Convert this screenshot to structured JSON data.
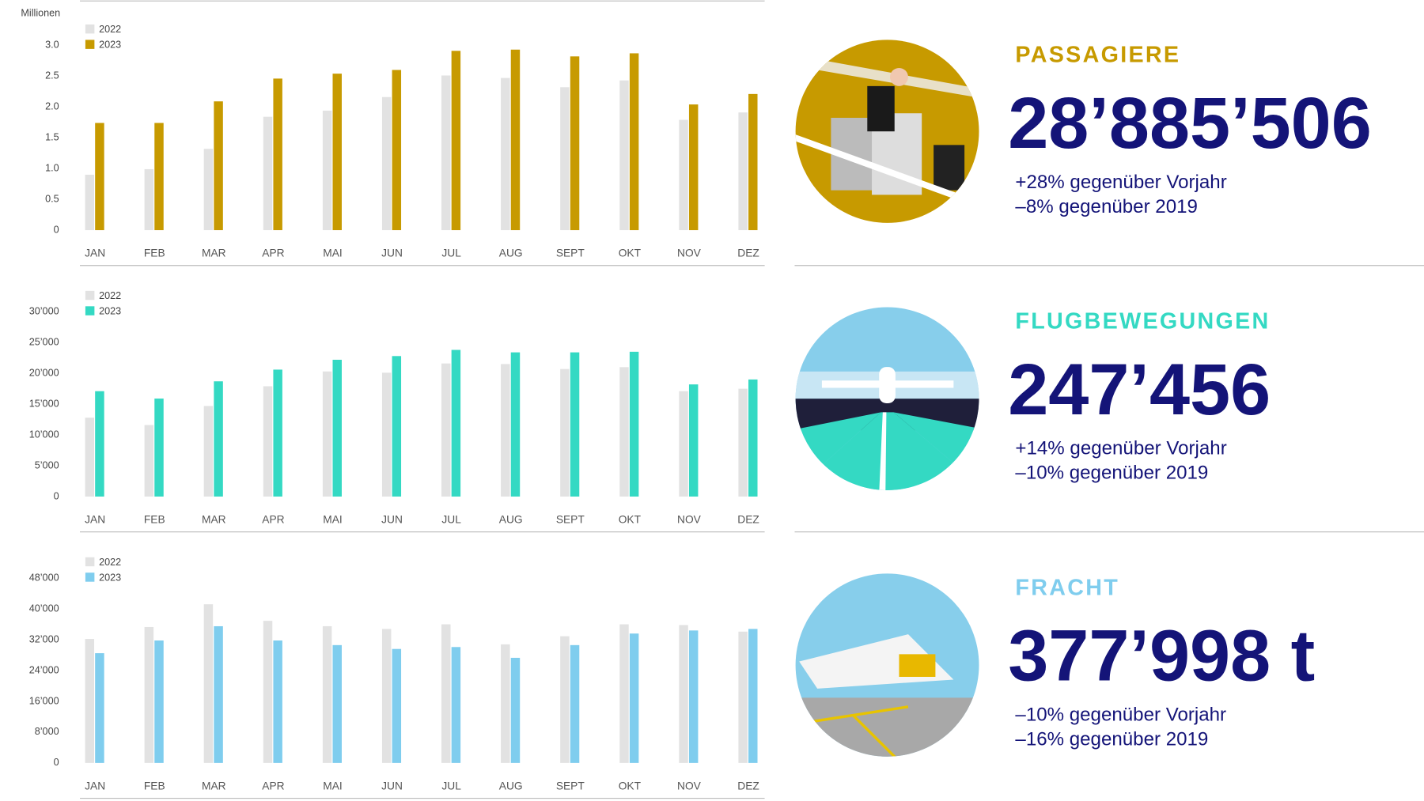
{
  "chart_data": [
    {
      "type": "bar",
      "y_label": "Millionen",
      "categories": [
        "JAN",
        "FEB",
        "MAR",
        "APR",
        "MAI",
        "JUN",
        "JUL",
        "AUG",
        "SEPT",
        "OKT",
        "NOV",
        "DEZ"
      ],
      "series": [
        {
          "name": "2022",
          "color": "#e2e2e2",
          "values": [
            0.9,
            0.99,
            1.32,
            1.84,
            1.94,
            2.16,
            2.51,
            2.47,
            2.32,
            2.43,
            1.79,
            1.91
          ]
        },
        {
          "name": "2023",
          "color": "#c79a00",
          "values": [
            1.74,
            1.74,
            2.09,
            2.46,
            2.54,
            2.6,
            2.91,
            2.93,
            2.82,
            2.87,
            2.04,
            2.21
          ]
        }
      ],
      "ylim": [
        0,
        3
      ],
      "yticks": [
        0,
        0.5,
        {
          "value": 1,
          "label": "1.0"
        },
        1.5,
        {
          "value": 2,
          "label": "2.0"
        },
        2.5,
        {
          "value": 3,
          "label": "3.0"
        }
      ]
    },
    {
      "type": "bar",
      "categories": [
        "JAN",
        "FEB",
        "MAR",
        "APR",
        "MAI",
        "JUN",
        "JUL",
        "AUG",
        "SEPT",
        "OKT",
        "NOV",
        "DEZ"
      ],
      "series": [
        {
          "name": "2022",
          "color": "#e2e2e2",
          "values": [
            12800,
            11600,
            14700,
            17900,
            20300,
            20100,
            21600,
            21500,
            20700,
            21000,
            17100,
            17500
          ]
        },
        {
          "name": "2023",
          "color": "#34d9c3",
          "values": [
            17100,
            15900,
            18700,
            20600,
            22200,
            22800,
            23800,
            23400,
            23400,
            23500,
            18200,
            19000
          ]
        }
      ],
      "ylim": [
        0,
        30000
      ],
      "yticks": [
        0,
        {
          "value": 5000,
          "label": "5’000"
        },
        {
          "value": 10000,
          "label": "10’000"
        },
        {
          "value": 15000,
          "label": "15’000"
        },
        {
          "value": 20000,
          "label": "20’000"
        },
        {
          "value": 25000,
          "label": "25’000"
        },
        {
          "value": 30000,
          "label": "30’000"
        }
      ]
    },
    {
      "type": "bar",
      "categories": [
        "JAN",
        "FEB",
        "MAR",
        "APR",
        "MAI",
        "JUN",
        "JUL",
        "AUG",
        "SEPT",
        "OKT",
        "NOV",
        "DEZ"
      ],
      "series": [
        {
          "name": "2022",
          "color": "#e2e2e2",
          "values": [
            32200,
            35300,
            41200,
            36900,
            35500,
            34800,
            36000,
            30800,
            32900,
            36000,
            35800,
            34100
          ]
        },
        {
          "name": "2023",
          "color": "#7fcdee",
          "values": [
            28500,
            31800,
            35500,
            31800,
            30600,
            29600,
            30100,
            27300,
            30600,
            33600,
            34400,
            34800
          ]
        }
      ],
      "ylim": [
        0,
        48000
      ],
      "yticks": [
        0,
        {
          "value": 8000,
          "label": "8’000"
        },
        {
          "value": 16000,
          "label": "16’000"
        },
        {
          "value": 24000,
          "label": "24’000"
        },
        {
          "value": 32000,
          "label": "32’000"
        },
        {
          "value": 40000,
          "label": "40’000"
        },
        {
          "value": 48000,
          "label": "48’000"
        }
      ]
    }
  ],
  "panels": [
    {
      "title": "PASSAGIERE",
      "color": "#c79a00",
      "value": "28’885’506",
      "notes": [
        "+28% gegenüber Vorjahr",
        "–8% gegenüber 2019"
      ]
    },
    {
      "title": "FLUGBEWEGUNGEN",
      "color": "#34d9c3",
      "value": "247’456",
      "notes": [
        "+14% gegenüber Vorjahr",
        "–10% gegenüber 2019"
      ]
    },
    {
      "title": "FRACHT",
      "color": "#7fcdee",
      "value": "377’998 t",
      "notes": [
        "–10% gegenüber Vorjahr",
        "–16% gegenüber 2019"
      ]
    }
  ]
}
